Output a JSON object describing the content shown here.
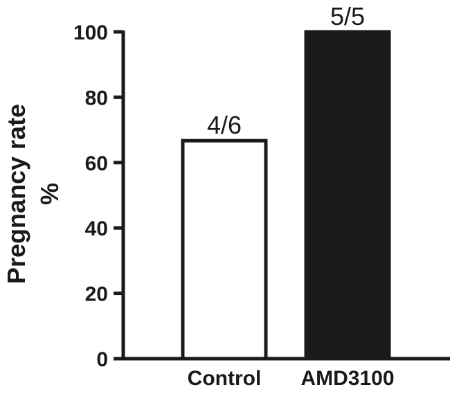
{
  "chart_data": {
    "type": "bar",
    "categories": [
      "Control",
      "AMD3100"
    ],
    "values": [
      66.7,
      100
    ],
    "data_labels": [
      "4/6",
      "5/5"
    ],
    "bar_fills": [
      "#ffffff",
      "#1a1a1a"
    ],
    "bar_edge_color": "#1a1a1a",
    "ylabel_lines": [
      "Pregnancy rate",
      "%"
    ],
    "xlabel": "",
    "ylim": [
      0,
      100
    ],
    "yticks": [
      0,
      20,
      40,
      60,
      80,
      100
    ],
    "ytick_labels": [
      "0",
      "20",
      "40",
      "60",
      "80",
      "100"
    ],
    "grid": false,
    "legend": "none"
  }
}
